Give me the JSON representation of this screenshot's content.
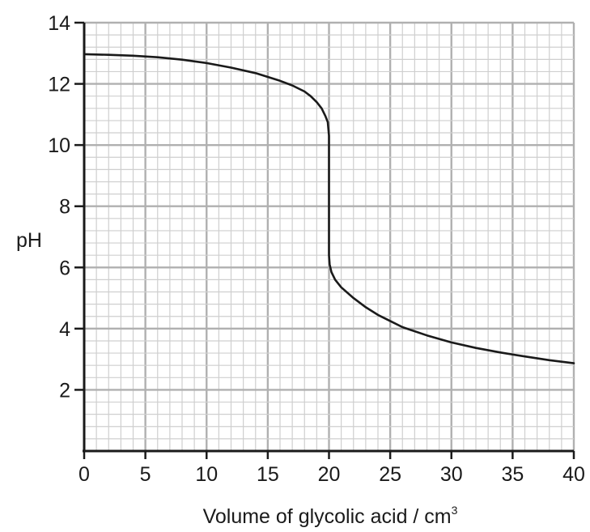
{
  "chart_data": {
    "type": "line",
    "xlabel": "Volume of glycolic acid / cm",
    "xlabel_superscript": "3",
    "ylabel": "pH",
    "xlim": [
      0,
      40
    ],
    "ylim": [
      0,
      14
    ],
    "x_ticks": [
      "0",
      "5",
      "10",
      "15",
      "20",
      "25",
      "30",
      "35",
      "40"
    ],
    "y_ticks": [
      "2",
      "4",
      "6",
      "8",
      "10",
      "12",
      "14"
    ],
    "grid": true,
    "series": [
      {
        "x": [
          0,
          2,
          4,
          6,
          8,
          10,
          12,
          14,
          16,
          17,
          18,
          18.5,
          19,
          19.4,
          19.7,
          19.9,
          20.0,
          20.0,
          20.0,
          20.0,
          20.05,
          20.2,
          20.5,
          21,
          22,
          23,
          24,
          25,
          26,
          28,
          30,
          32,
          34,
          36,
          38,
          40
        ],
        "y": [
          12.97,
          12.95,
          12.92,
          12.87,
          12.79,
          12.68,
          12.53,
          12.35,
          12.1,
          11.95,
          11.75,
          11.6,
          11.4,
          11.2,
          10.95,
          10.75,
          10.3,
          8.5,
          7.0,
          6.4,
          6.1,
          5.85,
          5.6,
          5.35,
          5.0,
          4.7,
          4.45,
          4.25,
          4.05,
          3.78,
          3.55,
          3.37,
          3.22,
          3.09,
          2.97,
          2.87
        ],
        "color": "#1a1a1a"
      }
    ]
  }
}
